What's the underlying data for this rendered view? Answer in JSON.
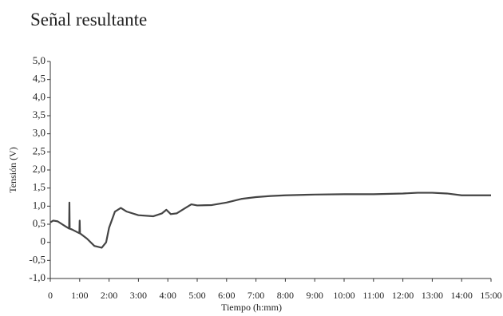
{
  "chart_data": {
    "type": "line",
    "title": "Señal resultante",
    "xlabel": "Tiempo (h:mm)",
    "ylabel": "Tensión (V)",
    "xlim": [
      0,
      15
    ],
    "ylim": [
      -1,
      5
    ],
    "xticks": [
      0,
      {
        "value": 1,
        "label": "1:00"
      },
      {
        "value": 2,
        "label": "2:00"
      },
      {
        "value": 3,
        "label": "3:00"
      },
      {
        "value": 4,
        "label": "4:00"
      },
      {
        "value": 5,
        "label": "5:00"
      },
      {
        "value": 6,
        "label": "6:00"
      },
      {
        "value": 7,
        "label": "7:00"
      },
      {
        "value": 8,
        "label": "8:00"
      },
      {
        "value": 9,
        "label": "9:00"
      },
      {
        "value": 10,
        "label": "10:00"
      },
      {
        "value": 11,
        "label": "11:00"
      },
      {
        "value": 12,
        "label": "12:00"
      },
      {
        "value": 13,
        "label": "13:00"
      },
      {
        "value": 14,
        "label": "14:00"
      },
      {
        "value": 15,
        "label": "15:00"
      }
    ],
    "yticks": [
      {
        "value": -1,
        "label": "-1,0"
      },
      {
        "value": -0.5,
        "label": "-0,5"
      },
      0,
      {
        "value": 0.5,
        "label": "0,5"
      },
      {
        "value": 1,
        "label": "1,0"
      },
      {
        "value": 1.5,
        "label": "1,5"
      },
      {
        "value": 2,
        "label": "2,0"
      },
      {
        "value": 2.5,
        "label": "2,5"
      },
      {
        "value": 3,
        "label": "3,0"
      },
      {
        "value": 3.5,
        "label": "3,5"
      },
      {
        "value": 4,
        "label": "4,0"
      },
      {
        "value": 4.5,
        "label": "4,5"
      },
      {
        "value": 5,
        "label": "5,0"
      }
    ],
    "x": [
      0,
      0.1,
      0.25,
      0.5,
      0.64,
      0.65,
      0.66,
      0.75,
      0.99,
      1.0,
      1.01,
      1.25,
      1.5,
      1.75,
      1.9,
      2.0,
      2.2,
      2.4,
      2.6,
      3.0,
      3.5,
      3.8,
      3.95,
      4.1,
      4.3,
      4.6,
      4.8,
      5.0,
      5.5,
      6.0,
      6.5,
      7.0,
      7.5,
      8,
      9,
      10,
      11,
      12,
      12.5,
      13,
      13.5,
      14,
      14.5,
      15
    ],
    "series": [
      {
        "name": "Tensión",
        "color": "#444444",
        "values": [
          0.55,
          0.6,
          0.58,
          0.45,
          0.38,
          1.1,
          0.38,
          0.35,
          0.25,
          0.6,
          0.25,
          0.1,
          -0.1,
          -0.15,
          0.0,
          0.4,
          0.85,
          0.95,
          0.85,
          0.75,
          0.72,
          0.8,
          0.9,
          0.78,
          0.8,
          0.95,
          1.05,
          1.02,
          1.03,
          1.1,
          1.2,
          1.25,
          1.28,
          1.3,
          1.32,
          1.33,
          1.33,
          1.35,
          1.37,
          1.37,
          1.35,
          1.3,
          1.3,
          1.3
        ]
      }
    ]
  }
}
